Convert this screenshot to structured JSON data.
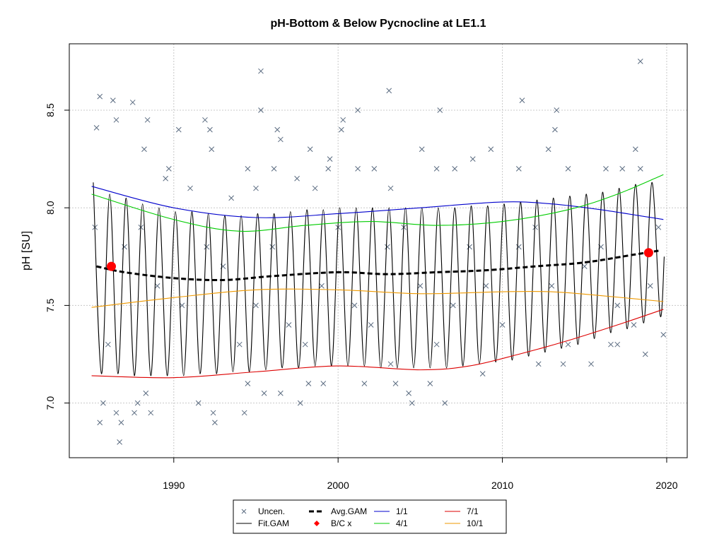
{
  "chart_data": {
    "type": "scatter-line",
    "title": "pH-Bottom & Below Pycnocline at LE1.1",
    "y_label": "pH [SU]",
    "xlim": [
      1983.64,
      2021.25
    ],
    "xticks": [
      1990,
      2000,
      2010,
      2020
    ],
    "ylim": [
      6.72,
      8.84
    ],
    "yticks": [
      7.0,
      7.5,
      8.0,
      8.5
    ],
    "grid": true,
    "legend": "bottom",
    "series": [
      {
        "name": "Uncen.",
        "color": "#5a6b80",
        "mark": "x",
        "x": [
          1985.3,
          1985.5,
          1986.3,
          1986.5,
          1987.5,
          1988.2,
          1988.4,
          1989.7,
          1989.5,
          1990.3,
          1991,
          1991.9,
          1992.2,
          1992.3,
          1993.5,
          1994.5,
          1995,
          1995.3,
          1995.3,
          1996.1,
          1996.3,
          1996.5,
          1997.5,
          1998.3,
          1998.6,
          1999.5,
          1999.4,
          2000.2,
          2000.3,
          2001.2,
          2001.2,
          2002.2,
          2003.1,
          2003.2,
          2005.1,
          2006,
          2006.2,
          2007.1,
          2008.2,
          2009.3,
          2011,
          2011.2,
          2012.8,
          2013.2,
          2013.3,
          2014,
          2016.3,
          2017.3,
          2018.1,
          2018.4,
          2018.4,
          1985.5,
          1985.7,
          1986.5,
          1986.7,
          1986.8,
          1987.6,
          1987.8,
          1988.3,
          1988.6,
          1991.5,
          1992.4,
          1992.5,
          1994.3,
          1994.5,
          1995.5,
          1996.5,
          1997.7,
          1998.2,
          1999.1,
          2001.6,
          2003.2,
          2003.5,
          2004.3,
          2004.5,
          2005.6,
          2006.5,
          2008.8,
          2012.2,
          2013.7,
          2015.4,
          2016.6,
          2017,
          2018.7,
          2019.8,
          1985.2,
          1987,
          1989,
          1990.5,
          1993,
          1995,
          1997,
          1999,
          2001,
          2003,
          2005,
          2007,
          2009,
          2011,
          2013,
          2015,
          2017,
          2019,
          1986,
          1988,
          1992,
          1994,
          1996,
          1998,
          2000,
          2002,
          2004,
          2006,
          2008,
          2010,
          2012,
          2014,
          2016,
          2018,
          2019.5
        ],
        "values": [
          8.41,
          8.57,
          8.55,
          8.45,
          8.54,
          8.3,
          8.45,
          8.2,
          8.15,
          8.4,
          8.1,
          8.45,
          8.4,
          8.3,
          8.05,
          8.2,
          8.1,
          8.5,
          8.7,
          8.2,
          8.4,
          8.35,
          8.15,
          8.3,
          8.1,
          8.25,
          8.2,
          8.4,
          8.45,
          8.5,
          8.2,
          8.2,
          8.6,
          8.1,
          8.3,
          8.2,
          8.5,
          8.2,
          8.25,
          8.3,
          8.2,
          8.55,
          8.3,
          8.4,
          8.5,
          8.2,
          8.2,
          8.2,
          8.3,
          8.75,
          8.2,
          6.9,
          7.0,
          6.95,
          6.8,
          6.9,
          6.95,
          7.0,
          7.05,
          6.95,
          7.0,
          6.95,
          6.9,
          6.95,
          7.1,
          7.05,
          7.05,
          7.0,
          7.1,
          7.1,
          7.1,
          7.2,
          7.1,
          7.05,
          7.0,
          7.1,
          7.0,
          7.15,
          7.2,
          7.2,
          7.2,
          7.3,
          7.3,
          7.25,
          7.35,
          7.9,
          7.8,
          7.6,
          7.5,
          7.7,
          7.5,
          7.4,
          7.6,
          7.5,
          7.8,
          7.6,
          7.5,
          7.6,
          7.8,
          7.6,
          7.7,
          7.5,
          7.6,
          7.3,
          7.9,
          7.8,
          7.3,
          7.8,
          7.3,
          7.9,
          7.4,
          7.9,
          7.3,
          7.8,
          7.4,
          7.9,
          7.3,
          7.8,
          7.4,
          7.9
        ]
      },
      {
        "name": "Fit.GAM",
        "color": "#000000",
        "mark": "line",
        "x": [
          1985.1,
          1985.6,
          1986.1,
          1986.6,
          1987.1,
          1987.6,
          1988.1,
          1988.6,
          1989.1,
          1989.6,
          1990.1,
          1990.6,
          1991.1,
          1991.6,
          1992.1,
          1992.6,
          1993.1,
          1993.6,
          1994.1,
          1994.6,
          1995.1,
          1995.6,
          1996.1,
          1996.6,
          1997.1,
          1997.6,
          1998.1,
          1998.6,
          1999.1,
          1999.6,
          2000.1,
          2000.6,
          2001.1,
          2001.6,
          2002.1,
          2002.6,
          2003.1,
          2003.6,
          2004.1,
          2004.6,
          2005.1,
          2005.6,
          2006.1,
          2006.6,
          2007.1,
          2007.6,
          2008.1,
          2008.6,
          2009.1,
          2009.6,
          2010.1,
          2010.6,
          2011.1,
          2011.6,
          2012.1,
          2012.6,
          2013.1,
          2013.6,
          2014.1,
          2014.6,
          2015.1,
          2015.6,
          2016.1,
          2016.6,
          2017.1,
          2017.6,
          2018.1,
          2018.6,
          2019.1,
          2019.6,
          2019.85
        ],
        "values": [
          8.13,
          7.15,
          8.07,
          7.15,
          8.05,
          7.14,
          8.02,
          7.14,
          8.0,
          7.14,
          7.98,
          7.14,
          7.98,
          7.15,
          7.97,
          7.15,
          7.96,
          7.16,
          7.96,
          7.16,
          7.97,
          7.17,
          7.97,
          7.18,
          7.98,
          7.18,
          7.99,
          7.19,
          7.99,
          7.19,
          8.0,
          7.19,
          8.0,
          7.19,
          8.0,
          7.18,
          8.0,
          7.18,
          8.0,
          7.18,
          8.0,
          7.18,
          8.0,
          7.18,
          8.0,
          7.19,
          8.01,
          7.2,
          8.01,
          7.21,
          8.02,
          7.22,
          8.03,
          7.24,
          8.04,
          7.26,
          8.05,
          7.28,
          8.06,
          7.3,
          8.07,
          7.33,
          8.08,
          7.36,
          8.1,
          7.38,
          8.12,
          7.41,
          8.13,
          7.45,
          7.75
        ]
      },
      {
        "name": "Avg.GAM",
        "color": "#000000",
        "mark": "dash",
        "x": [
          1985.3,
          1987,
          1990,
          1993,
          1996,
          2000,
          2003,
          2006,
          2009,
          2012,
          2015,
          2018,
          2019.5
        ],
        "values": [
          7.7,
          7.67,
          7.64,
          7.63,
          7.65,
          7.67,
          7.66,
          7.67,
          7.68,
          7.7,
          7.72,
          7.76,
          7.78
        ]
      },
      {
        "name": "B/C x",
        "color": "#ff0000",
        "mark": "dot",
        "x": [
          1986.2,
          2018.9
        ],
        "values": [
          7.7,
          7.77
        ]
      },
      {
        "name": "1/1",
        "color": "#0000cc",
        "mark": "line",
        "x": [
          1985,
          1990,
          1995,
          2000,
          2005,
          2010,
          2013,
          2016,
          2019.8
        ],
        "values": [
          8.11,
          8.0,
          7.95,
          7.97,
          8.0,
          8.03,
          8.02,
          7.99,
          7.94
        ]
      },
      {
        "name": "4/1",
        "color": "#00cc00",
        "mark": "line",
        "x": [
          1985,
          1990,
          1994,
          1998,
          2002,
          2006,
          2010,
          2014,
          2017,
          2019.8
        ],
        "values": [
          8.07,
          7.94,
          7.88,
          7.91,
          7.93,
          7.91,
          7.93,
          7.99,
          8.07,
          8.17
        ]
      },
      {
        "name": "7/1",
        "color": "#dd0000",
        "mark": "line",
        "x": [
          1985,
          1990,
          1995,
          2000,
          2005,
          2008,
          2011,
          2014,
          2017,
          2019.8
        ],
        "values": [
          7.14,
          7.13,
          7.16,
          7.19,
          7.17,
          7.19,
          7.25,
          7.32,
          7.4,
          7.48
        ]
      },
      {
        "name": "10/1",
        "color": "#ee9900",
        "mark": "line",
        "x": [
          1985,
          1990,
          1995,
          2000,
          2005,
          2010,
          2013,
          2016,
          2019.8
        ],
        "values": [
          7.49,
          7.54,
          7.58,
          7.58,
          7.56,
          7.57,
          7.57,
          7.55,
          7.52
        ]
      }
    ]
  }
}
